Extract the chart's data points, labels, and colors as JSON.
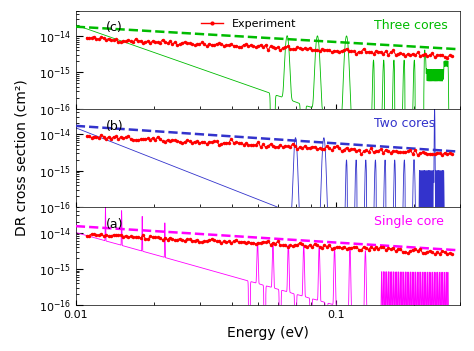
{
  "xlim": [
    0.01,
    0.3
  ],
  "ylim": [
    1e-16,
    5e-14
  ],
  "xlabel": "Energy (eV)",
  "ylabel": "DR cross section (cm²)",
  "panel_labels": [
    "(c)",
    "(b)",
    "(a)"
  ],
  "panel_texts": [
    "Three cores",
    "Two cores",
    "Single core"
  ],
  "panel_text_colors": [
    "magenta",
    "#3333cc",
    "#00bb00"
  ],
  "exp_color": "red",
  "exp_marker": "o",
  "exp_markersize": 2.5,
  "exp_linewidth": 0.8,
  "direct_colors": [
    "magenta",
    "#3333cc",
    "#00bb00"
  ],
  "background": "#f0f0f0",
  "figsize": [
    4.74,
    3.51
  ],
  "dpi": 100,
  "label_fontsize": 10,
  "tick_fontsize": 8,
  "panel_fontsize": 9
}
